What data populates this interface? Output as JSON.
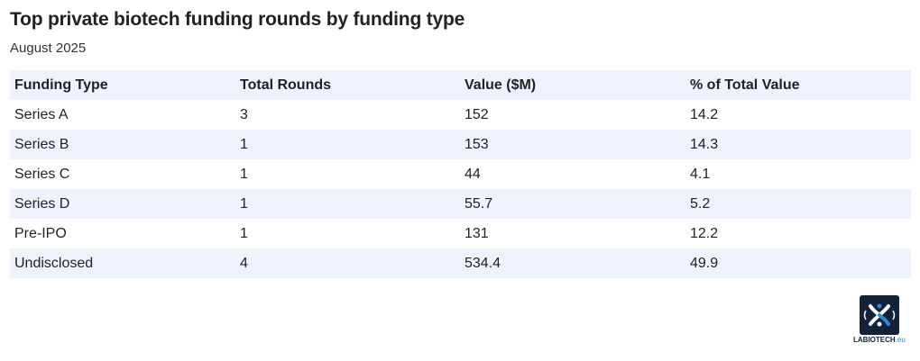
{
  "title": "Top private biotech funding rounds by funding type",
  "subtitle": "August 2025",
  "chart_data": {
    "type": "table",
    "columns": [
      "Funding Type",
      "Total Rounds",
      "Value ($M)",
      "% of Total Value"
    ],
    "rows": [
      [
        "Series A",
        "3",
        "152",
        "14.2"
      ],
      [
        "Series B",
        "1",
        "153",
        "14.3"
      ],
      [
        "Series C",
        "1",
        "44",
        "4.1"
      ],
      [
        "Series D",
        "1",
        "55.7",
        "5.2"
      ],
      [
        "Pre-IPO",
        "1",
        "131",
        "12.2"
      ],
      [
        "Undisclosed",
        "4",
        "534.4",
        "49.9"
      ]
    ]
  },
  "logo": {
    "name": "LABIOTECH",
    "suffix": ".eu",
    "icon": "labiotech-logo-icon",
    "colors": {
      "box": "#14213a",
      "accent": "#2a8bd6"
    }
  },
  "colors": {
    "row_stripe": "#eef3fb",
    "text": "#222222"
  }
}
